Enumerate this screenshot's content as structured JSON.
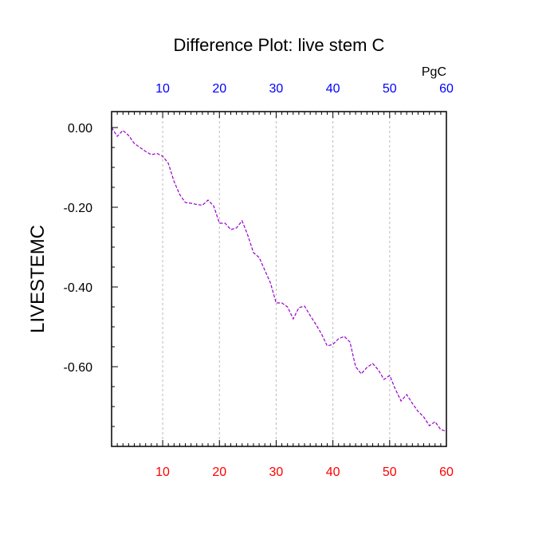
{
  "chart_data": {
    "type": "line",
    "title": "Difference Plot: live stem C",
    "ylabel": "LIVESTEMC",
    "top_axis_unit": "PgC",
    "xlim": [
      1,
      60
    ],
    "ylim": [
      -0.8,
      0.04
    ],
    "grid": "vertical-dashed",
    "x_ticks": [
      10,
      20,
      30,
      40,
      50,
      60
    ],
    "x_tick_labels": [
      "10",
      "20",
      "30",
      "40",
      "50",
      "60"
    ],
    "y_ticks": [
      0.0,
      -0.2,
      -0.4,
      -0.6
    ],
    "y_tick_labels": [
      "0.00",
      "-0.20",
      "-0.40",
      "-0.60"
    ],
    "top_tick_color": "#0000ff",
    "bottom_tick_color": "#ff0000",
    "series": [
      {
        "color": "#9900cc",
        "dashed": true,
        "x": [
          1,
          2,
          3,
          4,
          5,
          6,
          7,
          8,
          9,
          10,
          11,
          12,
          13,
          14,
          15,
          16,
          17,
          18,
          19,
          20,
          21,
          22,
          23,
          24,
          25,
          26,
          27,
          28,
          29,
          30,
          31,
          32,
          33,
          34,
          35,
          36,
          37,
          38,
          39,
          40,
          41,
          42,
          43,
          44,
          45,
          46,
          47,
          48,
          49,
          50,
          51,
          52,
          53,
          54,
          55,
          56,
          57,
          58,
          59,
          60
        ],
        "y": [
          0.0,
          -0.022,
          -0.007,
          -0.02,
          -0.04,
          -0.05,
          -0.06,
          -0.068,
          -0.065,
          -0.072,
          -0.09,
          -0.135,
          -0.168,
          -0.188,
          -0.19,
          -0.193,
          -0.195,
          -0.182,
          -0.197,
          -0.24,
          -0.24,
          -0.256,
          -0.252,
          -0.234,
          -0.27,
          -0.314,
          -0.326,
          -0.358,
          -0.39,
          -0.44,
          -0.44,
          -0.45,
          -0.48,
          -0.452,
          -0.448,
          -0.472,
          -0.494,
          -0.518,
          -0.548,
          -0.544,
          -0.53,
          -0.524,
          -0.538,
          -0.6,
          -0.618,
          -0.602,
          -0.592,
          -0.608,
          -0.632,
          -0.622,
          -0.656,
          -0.686,
          -0.67,
          -0.692,
          -0.712,
          -0.726,
          -0.748,
          -0.738,
          -0.758,
          -0.762
        ]
      }
    ]
  }
}
